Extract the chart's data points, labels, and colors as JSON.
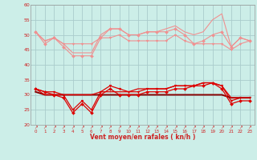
{
  "xlabel": "Vent moyen/en rafales ( kn/h )",
  "background_color": "#cceee8",
  "grid_color": "#aacccc",
  "hours": [
    0,
    1,
    2,
    3,
    4,
    5,
    6,
    7,
    8,
    9,
    10,
    11,
    12,
    13,
    14,
    15,
    16,
    17,
    18,
    19,
    20,
    21,
    22,
    23
  ],
  "series_pink": [
    {
      "data": [
        51,
        47,
        49,
        46,
        43,
        43,
        43,
        49,
        52,
        52,
        50,
        50,
        51,
        51,
        51,
        52,
        50,
        47,
        48,
        50,
        51,
        46,
        49,
        48
      ],
      "marker": "D",
      "ms": 2.0
    },
    {
      "data": [
        51,
        48,
        49,
        47,
        47,
        47,
        47,
        49,
        49,
        50,
        48,
        48,
        48,
        48,
        48,
        50,
        48,
        47,
        47,
        47,
        47,
        45,
        47,
        48
      ],
      "marker": "v",
      "ms": 2.0
    },
    {
      "data": [
        51,
        48,
        49,
        47,
        44,
        44,
        44,
        50,
        52,
        52,
        50,
        50,
        51,
        51,
        52,
        53,
        51,
        50,
        51,
        55,
        57,
        46,
        49,
        48
      ],
      "marker": null,
      "ms": 0
    }
  ],
  "series_red": [
    {
      "data": [
        32,
        31,
        31,
        30,
        25,
        28,
        25,
        31,
        33,
        32,
        31,
        31,
        32,
        32,
        32,
        33,
        33,
        33,
        34,
        34,
        33,
        28,
        29,
        29
      ],
      "marker": "v",
      "ms": 2.0,
      "lw": 0.9,
      "color": "#dd0000"
    },
    {
      "data": [
        31,
        30,
        30,
        30,
        30,
        30,
        30,
        30,
        30,
        30,
        30,
        30,
        30,
        30,
        30,
        30,
        30,
        30,
        30,
        30,
        30,
        29,
        29,
        29
      ],
      "marker": null,
      "ms": 0,
      "lw": 1.4,
      "color": "#880000"
    },
    {
      "data": [
        32,
        31,
        30,
        29,
        24,
        27,
        24,
        30,
        32,
        30,
        30,
        30,
        31,
        31,
        31,
        32,
        32,
        33,
        33,
        34,
        32,
        27,
        28,
        28
      ],
      "marker": "D",
      "ms": 2.0,
      "lw": 0.9,
      "color": "#dd0000"
    },
    {
      "data": [
        32,
        30,
        30,
        30,
        30,
        30,
        30,
        31,
        31,
        31,
        31,
        32,
        32,
        32,
        32,
        33,
        33,
        33,
        34,
        34,
        33,
        29,
        29,
        29
      ],
      "marker": null,
      "ms": 0,
      "lw": 0.9,
      "color": "#dd0000"
    }
  ],
  "pink_color": "#f09090",
  "ylim": [
    20,
    60
  ],
  "yticks": [
    20,
    25,
    30,
    35,
    40,
    45,
    50,
    55,
    60
  ]
}
